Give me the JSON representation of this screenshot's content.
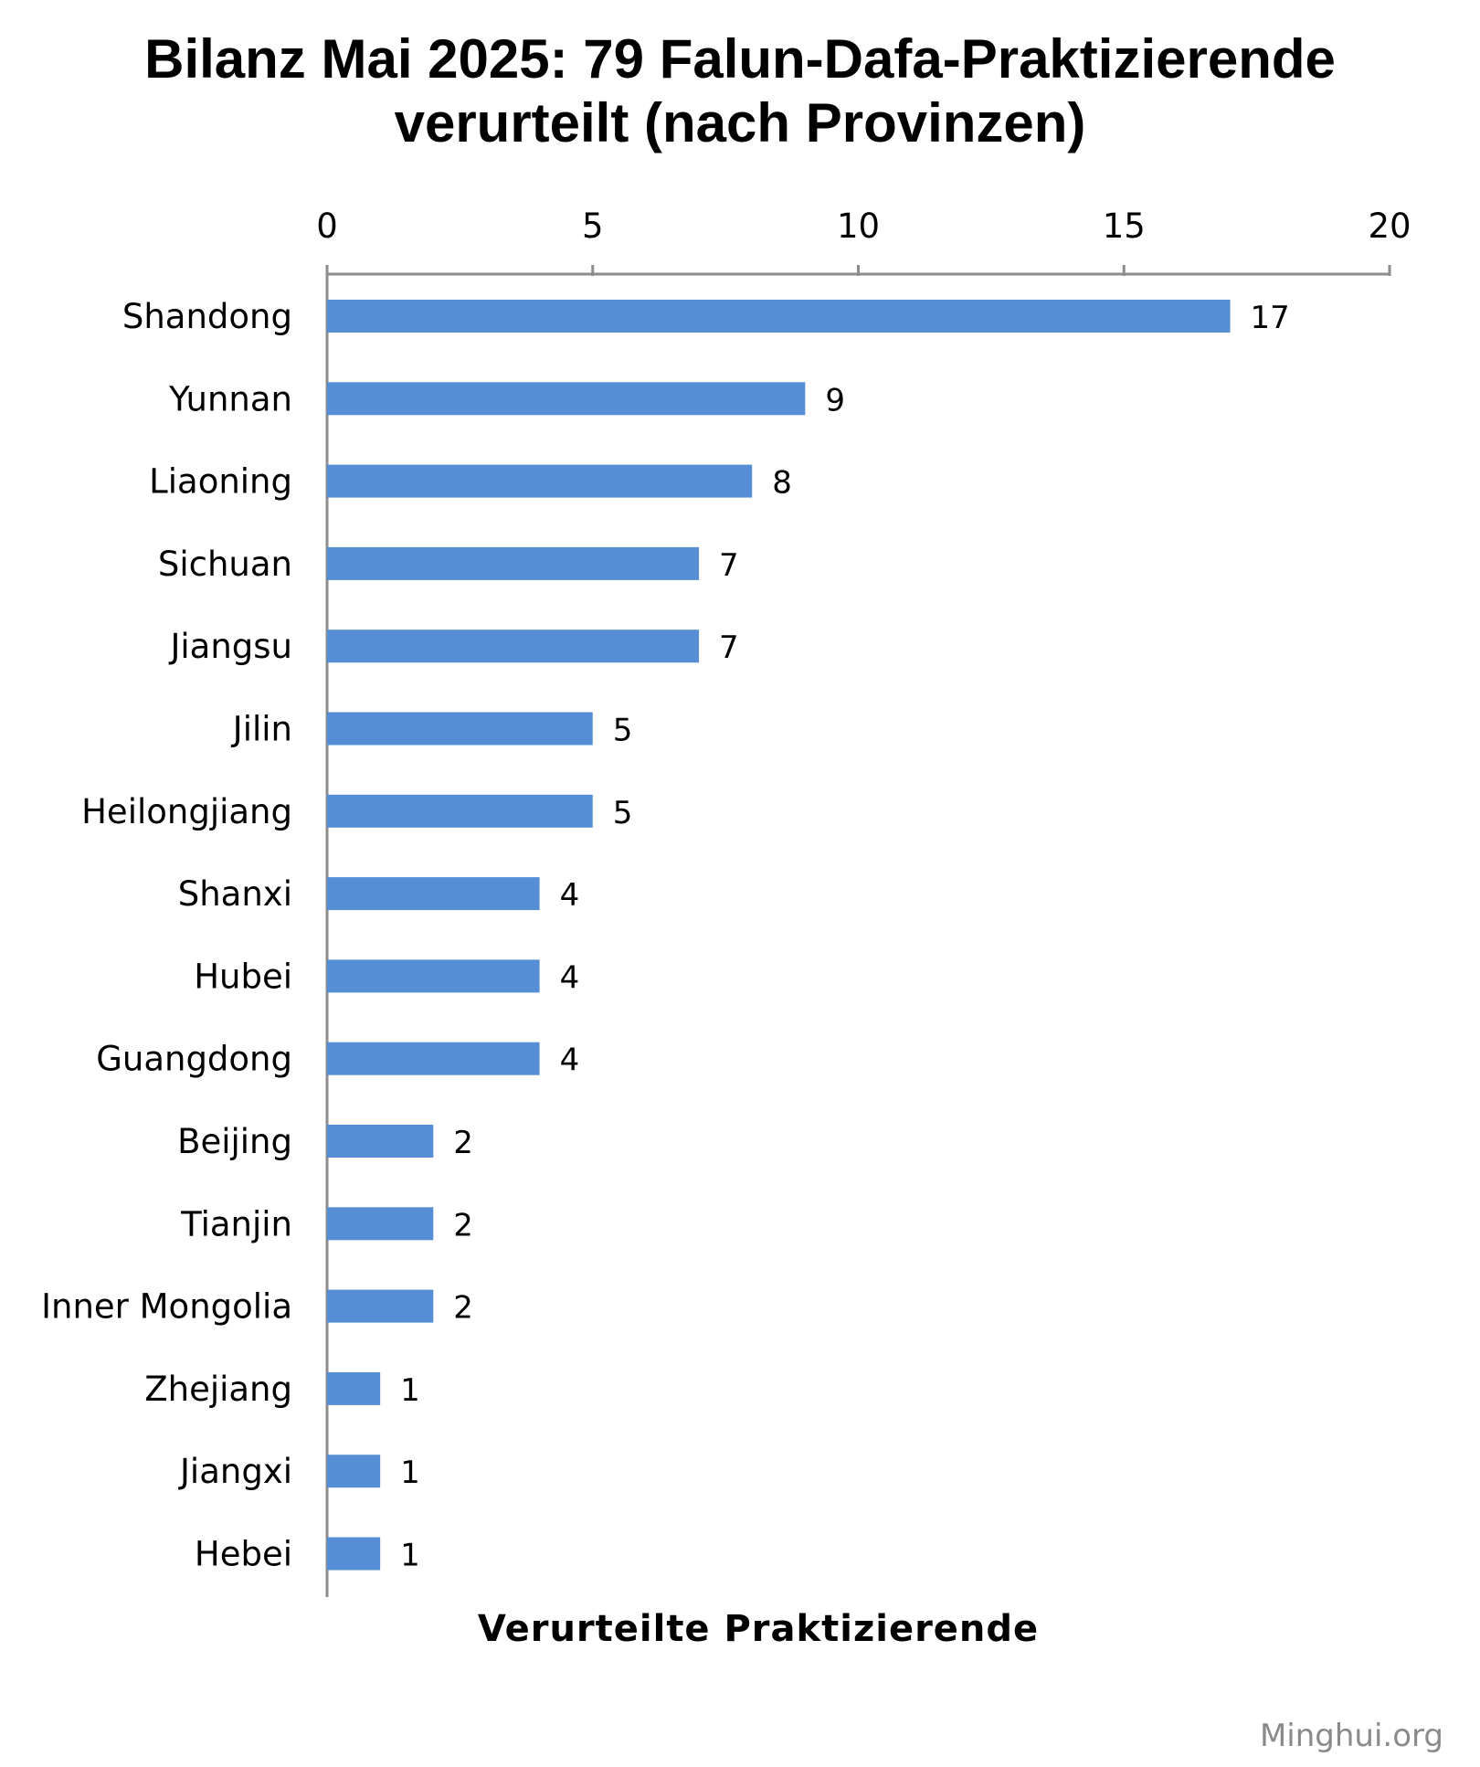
{
  "title_line1": "Bilanz Mai 2025: 79 Falun-Dafa-Praktizierende",
  "title_line2": "verurteilt  (nach Provinzen)",
  "watermark": "Minghui.org",
  "chart_data": {
    "type": "bar",
    "orientation": "horizontal",
    "title": "Bilanz Mai 2025: 79 Falun-Dafa-Praktizierende verurteilt  (nach Provinzen)",
    "xlabel": "Verurteilte Praktizierende",
    "ylabel": "",
    "xlim": [
      0,
      20
    ],
    "ticks": [
      0,
      5,
      10,
      15,
      20
    ],
    "axis_position": "top",
    "grid": false,
    "bar_color": "#558ed5",
    "categories": [
      "Shandong",
      "Yunnan",
      "Liaoning",
      "Sichuan",
      "Jiangsu",
      "Jilin",
      "Heilongjiang",
      "Shanxi",
      "Hubei",
      "Guangdong",
      "Beijing",
      "Tianjin",
      "Inner Mongolia",
      "Zhejiang",
      "Jiangxi",
      "Hebei"
    ],
    "values": [
      17,
      9,
      8,
      7,
      7,
      5,
      5,
      4,
      4,
      4,
      2,
      2,
      2,
      1,
      1,
      1
    ]
  }
}
